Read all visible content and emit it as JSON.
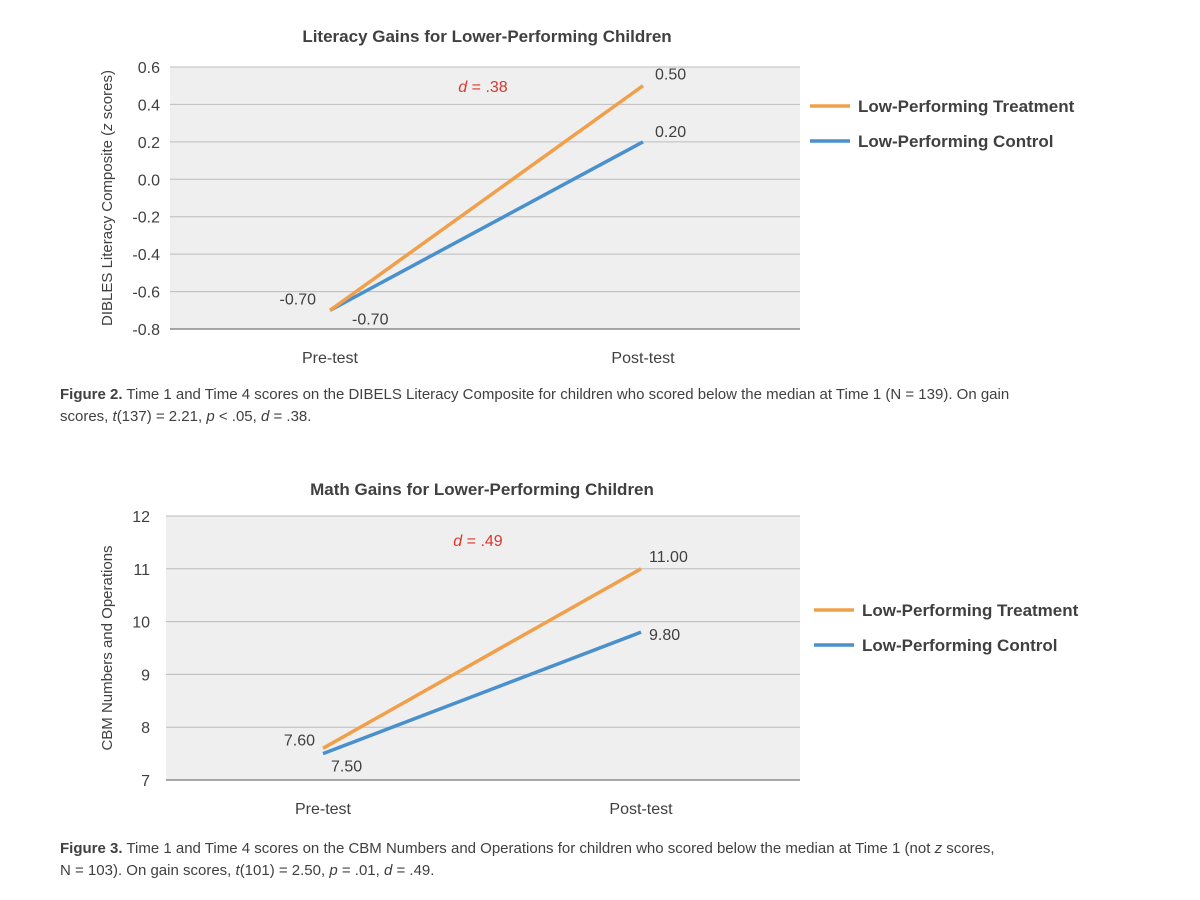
{
  "colors": {
    "treatment": "#f0a04b",
    "control": "#4a90cc",
    "effect_size": "#d9382c",
    "plot_bg": "#efefef",
    "grid": "#bdbdbd"
  },
  "chart_data": [
    {
      "type": "line",
      "title": "Literacy Gains for Lower-Performing Children",
      "xlabel": "",
      "ylabel": "DIBLES Literacy Composite (z scores)",
      "ylabel_prefix": "DIBLES Literacy Composite (",
      "ylabel_italic": "z",
      "ylabel_suffix": " scores)",
      "categories": [
        "Pre-test",
        "Post-test"
      ],
      "ylim": [
        -0.8,
        0.6
      ],
      "yticks": [
        -0.8,
        -0.6,
        -0.4,
        -0.2,
        0.0,
        0.2,
        0.4,
        0.6
      ],
      "ytick_labels": [
        "-0.8",
        "-0.6",
        "-0.4",
        "-0.2",
        "0.0",
        "0.2",
        "0.4",
        "0.6"
      ],
      "grid": true,
      "legend_position": "right",
      "series": [
        {
          "name": "Low-Performing Treatment",
          "values": [
            -0.7,
            0.5
          ],
          "labels": [
            "-0.70",
            "0.50"
          ],
          "color": "#f0a04b"
        },
        {
          "name": "Low-Performing Control",
          "values": [
            -0.7,
            0.2
          ],
          "labels": [
            "-0.70",
            "0.20"
          ],
          "color": "#4a90cc"
        }
      ],
      "annotation": {
        "d_symbol": "d",
        "text": " = .38"
      }
    },
    {
      "type": "line",
      "title": "Math Gains for Lower-Performing Children",
      "xlabel": "",
      "ylabel": "CBM Numbers and Operations",
      "ylabel_prefix": "CBM Numbers and Operations",
      "ylabel_italic": "",
      "ylabel_suffix": "",
      "categories": [
        "Pre-test",
        "Post-test"
      ],
      "ylim": [
        7,
        12
      ],
      "yticks": [
        7,
        8,
        9,
        10,
        11,
        12
      ],
      "ytick_labels": [
        "7",
        "8",
        "9",
        "10",
        "11",
        "12"
      ],
      "grid": true,
      "legend_position": "right",
      "series": [
        {
          "name": "Low-Performing Treatment",
          "values": [
            7.6,
            11.0
          ],
          "labels": [
            "7.60",
            "11.00"
          ],
          "color": "#f0a04b"
        },
        {
          "name": "Low-Performing Control",
          "values": [
            7.5,
            9.8
          ],
          "labels": [
            "7.50",
            "9.80"
          ],
          "color": "#4a90cc"
        }
      ],
      "annotation": {
        "d_symbol": "d",
        "text": " = .49"
      }
    }
  ],
  "captions": [
    {
      "fig": "Figure 2.",
      "line1": " Time 1 and Time 4 scores on the DIBELS Literacy Composite for children who scored below the median at Time 1 (N = 139). On gain",
      "l2a": "scores, ",
      "t": "t",
      "l2b": "(137) = 2.21, ",
      "p": "p",
      "l2c": " < .05, ",
      "d": "d",
      "l2d": " = .38."
    },
    {
      "fig": "Figure 3.",
      "line1a": " Time 1 and Time 4 scores on the CBM Numbers and Operations for children who scored below the median at Time 1 (not ",
      "z": "z",
      "line1b": " scores,",
      "l2a": "N = 103). On gain scores, ",
      "t": "t",
      "l2b": "(101) = 2.50, ",
      "p": "p",
      "l2c": " = .01, ",
      "d": "d",
      "l2d": " = .49."
    }
  ]
}
